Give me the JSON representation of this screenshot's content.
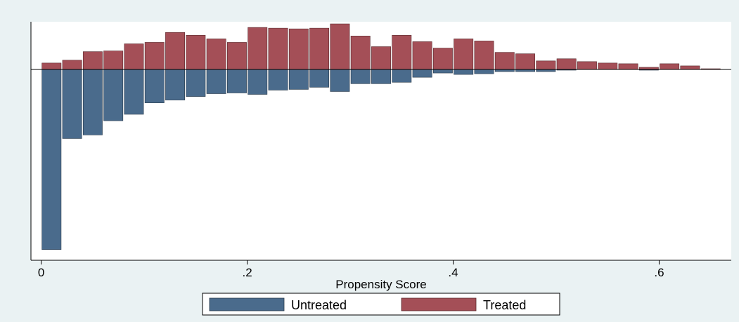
{
  "chart_data": {
    "type": "bar",
    "title": "",
    "xlabel": "Propensity Score",
    "ylabel": "",
    "xlim": [
      -0.01,
      0.67
    ],
    "ylim": [
      -268,
      67
    ],
    "bin_width": 0.02,
    "x_ticks": [
      {
        "value": 0,
        "label": "0"
      },
      {
        "value": 0.2,
        "label": ".2"
      },
      {
        "value": 0.4,
        "label": ".4"
      },
      {
        "value": 0.6,
        "label": ".6"
      }
    ],
    "grid": false,
    "legend_position": "bottom",
    "x": [
      0.01,
      0.03,
      0.05,
      0.07,
      0.09,
      0.11,
      0.13,
      0.15,
      0.17,
      0.19,
      0.21,
      0.23,
      0.25,
      0.27,
      0.29,
      0.31,
      0.33,
      0.35,
      0.37,
      0.39,
      0.41,
      0.43,
      0.45,
      0.47,
      0.49,
      0.51,
      0.53,
      0.55,
      0.57,
      0.59,
      0.61,
      0.63,
      0.65
    ],
    "series": [
      {
        "name": "Untreated",
        "color": "#4a6b8c",
        "values": [
          -253,
          -97,
          -92,
          -72,
          -63,
          -47,
          -43,
          -38,
          -34,
          -33,
          -35,
          -29,
          -28,
          -25,
          -31,
          -20,
          -20,
          -18,
          -11,
          -5,
          -7,
          -6,
          -3,
          -3,
          -3,
          -1,
          0,
          0,
          0,
          -1,
          0,
          0,
          0
        ]
      },
      {
        "name": "Treated",
        "color": "#a44f57",
        "values": [
          9,
          13,
          25,
          26,
          36,
          38,
          52,
          48,
          43,
          38,
          59,
          58,
          57,
          58,
          64,
          47,
          32,
          48,
          39,
          30,
          43,
          40,
          24,
          22,
          12,
          15,
          11,
          9,
          8,
          3,
          8,
          5,
          1
        ]
      }
    ]
  }
}
